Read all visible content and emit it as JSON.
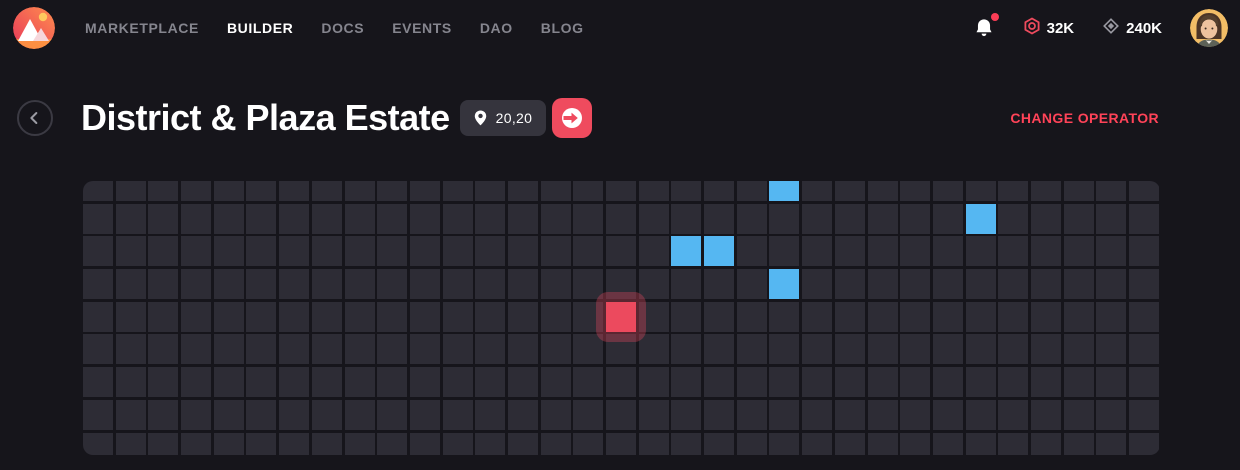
{
  "nav": {
    "items": [
      {
        "label": "MARKETPLACE",
        "active": false
      },
      {
        "label": "BUILDER",
        "active": true
      },
      {
        "label": "DOCS",
        "active": false
      },
      {
        "label": "EVENTS",
        "active": false
      },
      {
        "label": "DAO",
        "active": false
      },
      {
        "label": "BLOG",
        "active": false
      }
    ],
    "notification": {
      "has_unread": true
    },
    "balances": [
      {
        "icon": "mana-icon",
        "value": "32K"
      },
      {
        "icon": "land-icon",
        "value": "240K"
      }
    ]
  },
  "header": {
    "title": "District & Plaza Estate",
    "coordinates": "20,20",
    "change_operator_label": "CHANGE OPERATOR"
  },
  "grid": {
    "columns": 33,
    "rows": 9,
    "parcels": {
      "blue": [
        [
          21,
          0
        ],
        [
          27,
          1
        ],
        [
          18,
          2
        ],
        [
          19,
          2
        ],
        [
          21,
          3
        ]
      ],
      "selected": [
        [
          16,
          4
        ]
      ]
    }
  },
  "colors": {
    "page_bg": "#16151b",
    "accent_red": "#ef4b5e",
    "link_red": "#ff4358",
    "notification_dot": "#fb3d56",
    "badge_bg": "#35343d",
    "parcel_base": "#2d2c35",
    "parcel_blue": "#55b7f2",
    "parcel_selected": "#ea4a5e"
  }
}
